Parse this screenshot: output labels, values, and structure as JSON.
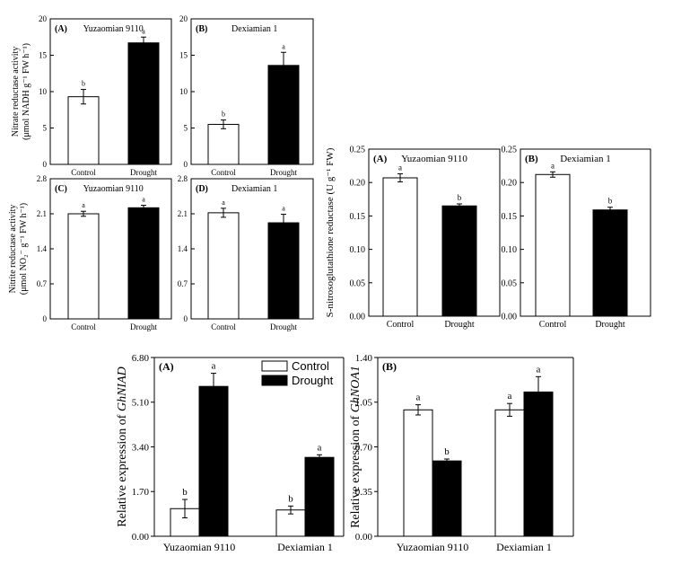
{
  "chart_data": [
    {
      "id": "nr-yuzao",
      "panel": "(A)",
      "title": "Yuzaomian 9110",
      "type": "bar",
      "ylabel_lines": [
        "Nitrate reductase activity",
        "(μmol NADH g⁻¹ FW h⁻¹)"
      ],
      "categories": [
        "Control",
        "Drought"
      ],
      "ylim": [
        0,
        20
      ],
      "ticks": [
        0,
        5,
        10,
        15,
        20
      ],
      "tick_labels": [
        "0",
        "5",
        "10",
        "15",
        "20"
      ],
      "values": [
        9.3,
        16.7
      ],
      "errors": [
        1.0,
        0.8
      ],
      "letters": [
        "b",
        "a"
      ]
    },
    {
      "id": "nr-dexia",
      "panel": "(B)",
      "title": "Dexiamian 1",
      "type": "bar",
      "categories": [
        "Control",
        "Drought"
      ],
      "ylim": [
        0,
        20
      ],
      "ticks": [
        0,
        5,
        10,
        15,
        20
      ],
      "tick_labels": [
        "0",
        "5",
        "10",
        "15",
        "20"
      ],
      "values": [
        5.5,
        13.6
      ],
      "errors": [
        0.6,
        1.8
      ],
      "letters": [
        "b",
        "a"
      ]
    },
    {
      "id": "nir-yuzao",
      "panel": "(C)",
      "title": "Yuzaomian 9110",
      "type": "bar",
      "ylabel_lines": [
        "Nitrite reductase activity",
        "(μmol NO₂⁻ g⁻¹ FW h⁻¹)"
      ],
      "categories": [
        "Control",
        "Drought"
      ],
      "ylim": [
        0,
        2.8
      ],
      "ticks": [
        0,
        0.7,
        1.4,
        2.1,
        2.8
      ],
      "tick_labels": [
        "0",
        "0.7",
        "1.4",
        "2.1",
        "2.8"
      ],
      "values": [
        2.1,
        2.22
      ],
      "errors": [
        0.05,
        0.05
      ],
      "letters": [
        "a",
        "a"
      ]
    },
    {
      "id": "nir-dexia",
      "panel": "(D)",
      "title": "Dexiamian 1",
      "type": "bar",
      "categories": [
        "Control",
        "Drought"
      ],
      "ylim": [
        0,
        2.8
      ],
      "ticks": [
        0,
        0.7,
        1.4,
        2.1,
        2.8
      ],
      "tick_labels": [
        "0",
        "0.7",
        "1.4",
        "2.1",
        "2.8"
      ],
      "values": [
        2.12,
        1.92
      ],
      "errors": [
        0.09,
        0.17
      ],
      "letters": [
        "a",
        "a"
      ]
    },
    {
      "id": "gsnor-yuzao",
      "panel": "(A)",
      "title": "Yuzaomian 9110",
      "type": "bar",
      "ylabel_lines": [
        "S-nitrosoglutathione reductase (U g⁻¹ FW)"
      ],
      "categories": [
        "Control",
        "Drought"
      ],
      "ylim": [
        0,
        0.25
      ],
      "ticks": [
        0,
        0.05,
        0.1,
        0.15,
        0.2,
        0.25
      ],
      "tick_labels": [
        "0.00",
        "0.05",
        "0.10",
        "0.15",
        "0.20",
        "0.25"
      ],
      "values": [
        0.207,
        0.165
      ],
      "errors": [
        0.006,
        0.003
      ],
      "letters": [
        "a",
        "b"
      ]
    },
    {
      "id": "gsnor-dexia",
      "panel": "(B)",
      "title": "Dexiamian 1",
      "type": "bar",
      "categories": [
        "Control",
        "Drought"
      ],
      "ylim": [
        0,
        0.25
      ],
      "ticks": [
        0,
        0.05,
        0.1,
        0.15,
        0.2,
        0.25
      ],
      "tick_labels": [
        "0.00",
        "0.05",
        "0.10",
        "0.15",
        "0.20",
        "0.25"
      ],
      "values": [
        0.212,
        0.159
      ],
      "errors": [
        0.004,
        0.004
      ],
      "letters": [
        "a",
        "b"
      ]
    },
    {
      "id": "ghnlad",
      "panel": "(A)",
      "type": "bar",
      "ylabel_prefix": "Relative expression of ",
      "ylabel_gene": "GhNIAD",
      "categories": [
        "Yuzaomian 9110",
        "Dexiamian 1"
      ],
      "ylim": [
        0,
        6.8
      ],
      "ticks": [
        0,
        1.7,
        3.4,
        5.1,
        6.8
      ],
      "tick_labels": [
        "0.00",
        "1.70",
        "3.40",
        "5.10",
        "6.80"
      ],
      "series": [
        {
          "name": "Control",
          "values": [
            1.05,
            1.0
          ],
          "errors": [
            0.35,
            0.15
          ],
          "letters": [
            "b",
            "b"
          ]
        },
        {
          "name": "Drought",
          "values": [
            5.7,
            3.0
          ],
          "errors": [
            0.5,
            0.1
          ],
          "letters": [
            "a",
            "a"
          ]
        }
      ],
      "legend": [
        "Control",
        "Drought"
      ]
    },
    {
      "id": "ghnoa1",
      "panel": "(B)",
      "type": "bar",
      "ylabel_prefix": "Relative expression of ",
      "ylabel_gene": "GhNOA1",
      "categories": [
        "Yuzaomian 9110",
        "Dexiamian 1"
      ],
      "ylim": [
        0,
        1.4
      ],
      "ticks": [
        0,
        0.35,
        0.7,
        1.05,
        1.4
      ],
      "tick_labels": [
        "0.00",
        "0.35",
        "0.70",
        "1.05",
        "1.40"
      ],
      "series": [
        {
          "name": "Control",
          "values": [
            0.99,
            0.99
          ],
          "errors": [
            0.04,
            0.05
          ],
          "letters": [
            "a",
            "a"
          ]
        },
        {
          "name": "Drought",
          "values": [
            0.59,
            1.13
          ],
          "errors": [
            0.015,
            0.12
          ],
          "letters": [
            "b",
            "a"
          ]
        }
      ]
    }
  ]
}
